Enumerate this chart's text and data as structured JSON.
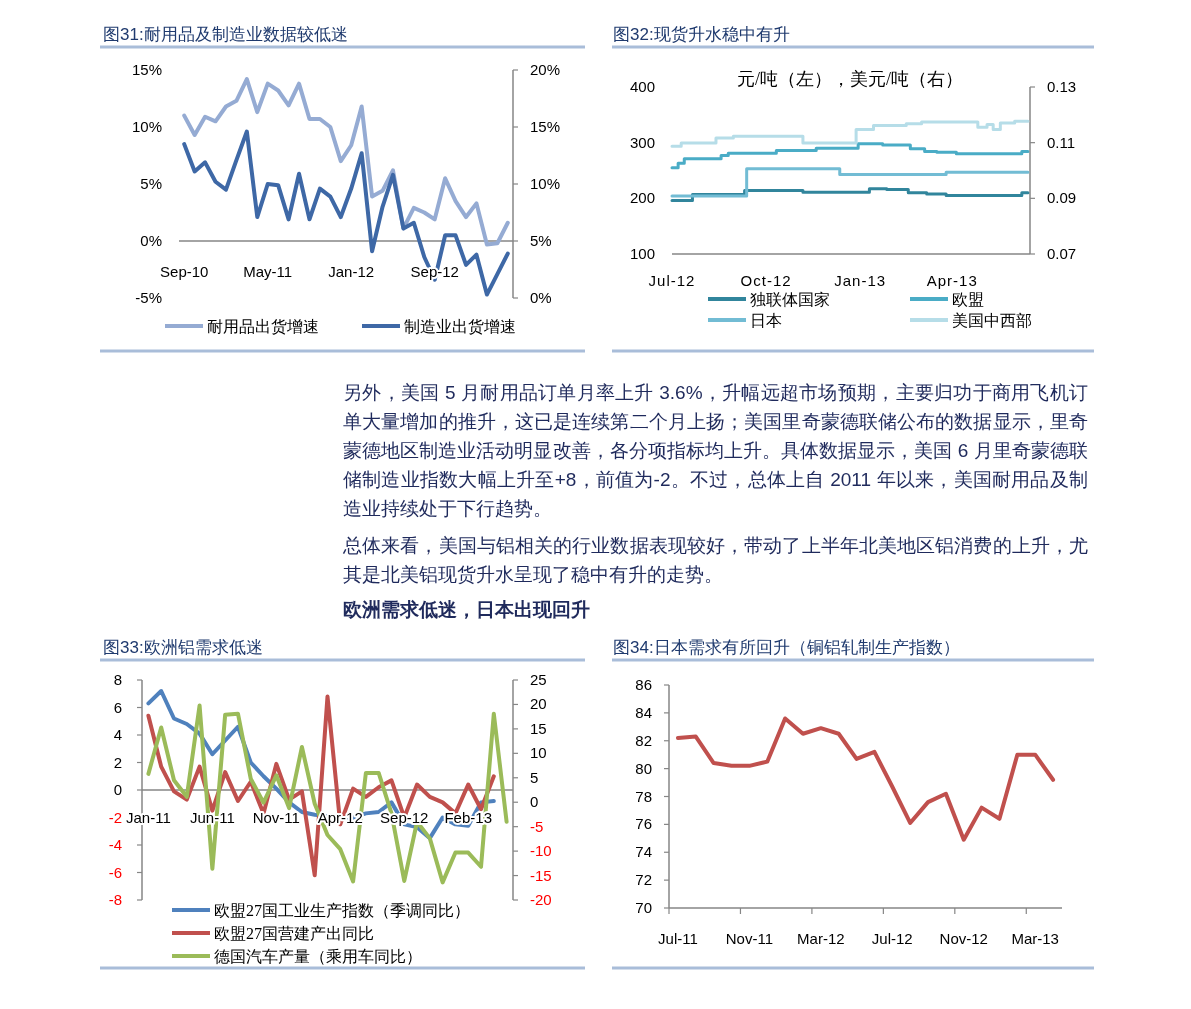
{
  "chart_data": [
    {
      "type": "line",
      "title": "图31:耐用品及制造业数据较低迷",
      "categories": [
        "Sep-10",
        null,
        null,
        null,
        null,
        null,
        null,
        null,
        "May-11",
        null,
        null,
        null,
        null,
        null,
        null,
        null,
        "Jan-12",
        null,
        null,
        null,
        null,
        null,
        null,
        null,
        "Sep-12",
        null,
        null,
        null,
        null,
        null,
        null,
        null
      ],
      "series": [
        {
          "name": "耐用品出货增速",
          "color": "#95abd3",
          "axis": "y2",
          "values": [
            16.0,
            14.3,
            15.9,
            15.5,
            16.8,
            17.3,
            19.2,
            16.3,
            18.8,
            18.2,
            16.9,
            18.8,
            15.7,
            15.7,
            15.0,
            12.0,
            13.4,
            16.8,
            8.9,
            9.4,
            11.2,
            6.1,
            7.9,
            7.5,
            6.9,
            10.5,
            8.5,
            7.1,
            8.3,
            4.7,
            4.8,
            6.6
          ]
        },
        {
          "name": "制造业出货增速",
          "color": "#3e68a6",
          "values": [
            8.5,
            6.1,
            6.9,
            5.2,
            4.5,
            7.1,
            9.6,
            2.1,
            5.0,
            4.9,
            1.9,
            5.9,
            1.9,
            4.6,
            3.9,
            2.1,
            4.6,
            7.7,
            -0.9,
            3.0,
            5.8,
            1.1,
            1.6,
            -1.4,
            -3.4,
            0.5,
            0.5,
            -2.1,
            -1.2,
            -4.7,
            -2.9,
            -1.1
          ]
        }
      ],
      "ylim": [
        -5,
        15
      ],
      "yticks": [
        {
          "value": -5,
          "label": "-5%"
        },
        {
          "value": 0,
          "label": "0%"
        },
        {
          "value": 5,
          "label": "5%"
        },
        {
          "value": 10,
          "label": "10%"
        },
        {
          "value": 15,
          "label": "15%"
        }
      ],
      "y2lim": [
        0,
        20
      ],
      "y2ticks": [
        {
          "value": 0,
          "label": "0%"
        },
        {
          "value": 5,
          "label": "5%"
        },
        {
          "value": 10,
          "label": "10%"
        },
        {
          "value": 15,
          "label": "15%"
        },
        {
          "value": 20,
          "label": "20%"
        }
      ],
      "legend": "bottom"
    },
    {
      "type": "step",
      "title": "图32:现货升水稳中有升",
      "annotations": [
        "元/吨（左），美元/吨（右）"
      ],
      "xlim": [
        "2012-07-01",
        "2013-06-16"
      ],
      "xticks": [
        {
          "value": "2012-07-01",
          "label": "Jul-12"
        },
        {
          "value": "2012-10-01",
          "label": "Oct-12"
        },
        {
          "value": "2013-01-01",
          "label": "Jan-13"
        },
        {
          "value": "2013-04-01",
          "label": "Apr-13"
        }
      ],
      "series": [
        {
          "name": "独联体国家",
          "color": "#31859c",
          "x": [
            "2012-07-01",
            "2012-07-21",
            "2012-09-10",
            "2012-11-06",
            "2013-01-10",
            "2013-01-27",
            "2013-02-17",
            "2013-03-07",
            "2013-03-26",
            "2013-06-08",
            "2013-06-14"
          ],
          "values": [
            196,
            207,
            214,
            211,
            217,
            216,
            210,
            208,
            205,
            210,
            210
          ]
        },
        {
          "name": "欧盟",
          "color": "#4aacc6",
          "x": [
            "2012-07-01",
            "2012-07-07",
            "2012-07-13",
            "2012-08-18",
            "2012-08-25",
            "2012-10-11",
            "2012-11-19",
            "2012-12-30",
            "2013-01-23",
            "2013-02-19",
            "2013-03-05",
            "2013-03-17",
            "2013-04-05",
            "2013-06-08",
            "2013-06-14"
          ],
          "values": [
            255,
            263,
            271,
            277,
            281,
            286,
            290,
            298,
            296,
            289,
            284,
            283,
            280,
            284,
            284
          ]
        },
        {
          "name": "日本",
          "color": "#72bcd4",
          "x": [
            "2012-07-01",
            "2012-09-12",
            "2012-12-12",
            "2013-03-26",
            "2013-06-14"
          ],
          "values": [
            204,
            253,
            243,
            247,
            247
          ]
        },
        {
          "name": "美国中西部",
          "color": "#b6dde8",
          "axis": "y2",
          "x": [
            "2012-07-01",
            "2012-07-10",
            "2012-08-13",
            "2012-08-30",
            "2012-11-06",
            "2012-12-28",
            "2013-01-14",
            "2013-02-15",
            "2013-03-02",
            "2013-04-26",
            "2013-05-05",
            "2013-05-11",
            "2013-05-18",
            "2013-06-01",
            "2013-06-14"
          ],
          "values": [
            0.1087,
            0.1099,
            0.1117,
            0.1123,
            0.1099,
            0.1147,
            0.1162,
            0.1168,
            0.1174,
            0.1155,
            0.1165,
            0.1147,
            0.1171,
            0.1177,
            0.1177
          ]
        }
      ],
      "ylim": [
        100,
        400
      ],
      "yticks": [
        100,
        200,
        300,
        400
      ],
      "y2lim": [
        0.07,
        0.13
      ],
      "y2ticks": [
        0.07,
        0.09,
        0.11,
        0.13
      ],
      "legend": "bottom"
    },
    {
      "type": "other",
      "title": "欧洲需求低迷，日本出现回升",
      "annotations": [
        "另外，美国 5 月耐用品订单月率上升 3.6%，升幅远超市场预期，主要归功于商用飞机订单大量增加的推升，这已是连续第二个月上扬；美国里奇蒙德联储公布的数据显示，里奇蒙德地区制造业活动明显改善，各分项指标均上升。具体数据显示，美国 6 月里奇蒙德联储制造业指数大幅上升至+8，前值为-2。不过，总体上自 2011 年以来，美国耐用品及制造业持续处于下行趋势。",
        "总体来看，美国与铝相关的行业数据表现较好，带动了上半年北美地区铝消费的上升，尤其是北美铝现货升水呈现了稳中有升的走势。"
      ]
    },
    {
      "type": "line",
      "title": "图33:欧洲铝需求低迷",
      "categories": [
        "Jan-11",
        null,
        null,
        null,
        null,
        "Jun-11",
        null,
        null,
        null,
        null,
        "Nov-11",
        null,
        null,
        null,
        null,
        "Apr-12",
        null,
        null,
        null,
        null,
        "Sep-12",
        null,
        null,
        null,
        null,
        "Feb-13",
        null,
        null,
        null
      ],
      "series": [
        {
          "name": "欧盟27国工业生产指数（季调同比）",
          "color": "#4f81bd",
          "values": [
            6.3,
            7.2,
            5.2,
            4.8,
            4.1,
            2.6,
            3.6,
            4.6,
            2.0,
            1.0,
            0.1,
            -0.9,
            -1.6,
            -1.8,
            -1.9,
            -2.0,
            -2.0,
            -1.7,
            -1.6,
            -0.9,
            -2.5,
            -2.7,
            -3.5,
            -2.0,
            -2.5,
            -2.6,
            -0.9,
            -0.8,
            null
          ]
        },
        {
          "name": "欧盟27国营建产出同比",
          "color": "#c0504d",
          "values": [
            5.4,
            1.7,
            -0.1,
            -0.7,
            1.7,
            -1.5,
            1.3,
            -0.8,
            0.6,
            -1.7,
            1.9,
            -0.7,
            -0.1,
            -6.2,
            6.8,
            -2.5,
            0.1,
            -0.5,
            0.2,
            0.7,
            -2.0,
            0.4,
            -0.5,
            -0.9,
            -1.7,
            0.4,
            -1.4,
            1.0,
            null
          ]
        },
        {
          "name": "德国汽车产量（乘用车同比）",
          "color": "#9bbb59",
          "axis": "y2",
          "values": [
            5.8,
            15.3,
            4.5,
            1.1,
            19.8,
            -13.6,
            17.9,
            18.1,
            4.8,
            -0.1,
            5.5,
            -1.2,
            11.3,
            -0.3,
            -6.7,
            -9.6,
            -16.2,
            6.0,
            6.0,
            -2.3,
            -16.1,
            -4.0,
            -7.4,
            -16.4,
            -10.3,
            -10.3,
            -13.2,
            18.1,
            -4.0
          ]
        }
      ],
      "ylim": [
        -8,
        8
      ],
      "yticks": [
        -8,
        -6,
        -4,
        -2,
        0,
        2,
        4,
        6,
        8
      ],
      "y2lim": [
        -20,
        25
      ],
      "y2ticks": [
        -20,
        -15,
        -10,
        -5,
        0,
        5,
        10,
        15,
        20,
        25
      ],
      "legend": "bottom"
    },
    {
      "type": "line",
      "title": "图34:日本需求有所回升（铜铝轧制生产指数）",
      "categories": [
        "Jul-11",
        null,
        null,
        null,
        "Nov-11",
        null,
        null,
        null,
        "Mar-12",
        null,
        null,
        null,
        "Jul-12",
        null,
        null,
        null,
        "Nov-12",
        null,
        null,
        null,
        "Mar-13",
        null
      ],
      "series": [
        {
          "color": "#c0504d",
          "values": [
            82.2,
            82.3,
            80.4,
            80.2,
            80.2,
            80.5,
            83.6,
            82.5,
            82.9,
            82.5,
            80.7,
            81.2,
            78.7,
            76.1,
            77.6,
            78.2,
            74.9,
            77.2,
            76.4,
            81.0,
            81.0,
            79.2
          ]
        }
      ],
      "ylim": [
        70,
        86
      ],
      "yticks": [
        70,
        72,
        74,
        76,
        78,
        80,
        82,
        84,
        86
      ]
    }
  ]
}
